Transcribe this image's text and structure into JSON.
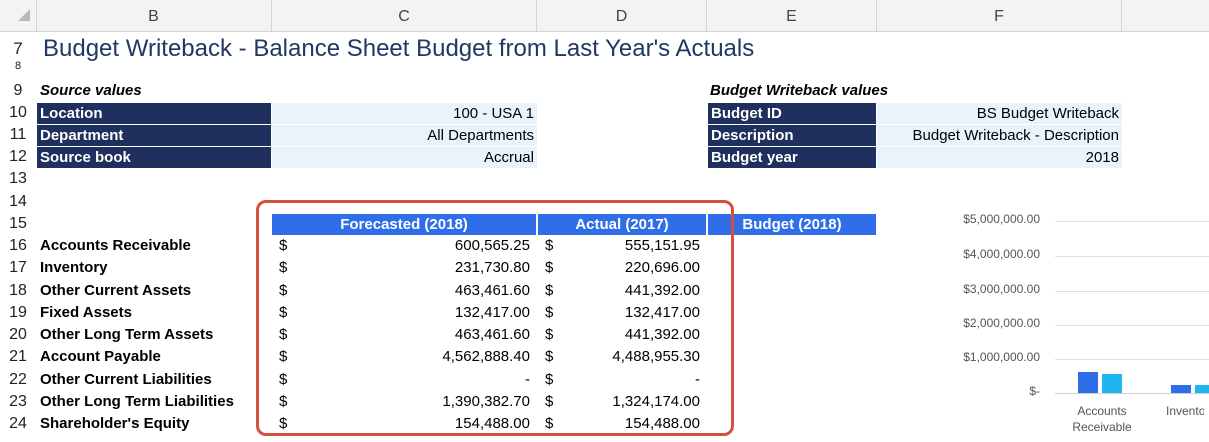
{
  "columns": [
    "B",
    "C",
    "D",
    "E",
    "F"
  ],
  "rows": [
    "7",
    "8",
    "9",
    "10",
    "11",
    "12",
    "13",
    "14",
    "15",
    "16",
    "17",
    "18",
    "19",
    "20",
    "21",
    "22",
    "23",
    "24"
  ],
  "title": "Budget Writeback - Balance Sheet Budget from Last Year's Actuals",
  "source": {
    "heading": "Source values",
    "fields": [
      {
        "label": "Location",
        "value": "100 - USA 1"
      },
      {
        "label": "Department",
        "value": "All Departments"
      },
      {
        "label": "Source book",
        "value": "Accrual"
      }
    ]
  },
  "writeback": {
    "heading": "Budget Writeback values",
    "fields": [
      {
        "label": "Budget ID",
        "value": "BS Budget Writeback"
      },
      {
        "label": "Description",
        "value": "Budget Writeback - Description"
      },
      {
        "label": "Budget year",
        "value": "2018"
      }
    ]
  },
  "table": {
    "headers": [
      "Forecasted (2018)",
      "Actual (2017)",
      "Budget (2018)"
    ],
    "currency": "$",
    "rows": [
      {
        "label": "Accounts Receivable",
        "forecast": "600,565.25",
        "actual": "555,151.95"
      },
      {
        "label": "Inventory",
        "forecast": "231,730.80",
        "actual": "220,696.00"
      },
      {
        "label": "Other Current Assets",
        "forecast": "463,461.60",
        "actual": "441,392.00"
      },
      {
        "label": "Fixed Assets",
        "forecast": "132,417.00",
        "actual": "132,417.00"
      },
      {
        "label": "Other Long Term Assets",
        "forecast": "463,461.60",
        "actual": "441,392.00"
      },
      {
        "label": "Account Payable",
        "forecast": "4,562,888.40",
        "actual": "4,488,955.30"
      },
      {
        "label": "Other Current Liabilities",
        "forecast": "-",
        "actual": "-"
      },
      {
        "label": "Other Long Term Liabilities",
        "forecast": "1,390,382.70",
        "actual": "1,324,174.00"
      },
      {
        "label": "Shareholder's Equity",
        "forecast": "154,488.00",
        "actual": "154,488.00"
      }
    ]
  },
  "chart_data": {
    "type": "bar",
    "categories": [
      "Accounts Receivable",
      "Inventory"
    ],
    "series": [
      {
        "name": "Forecasted (2018)",
        "values": [
          600565.25,
          231730.8
        ],
        "color": "#2f6ee8"
      },
      {
        "name": "Actual (2017)",
        "values": [
          555151.95,
          220696.0
        ],
        "color": "#1fb6f0"
      }
    ],
    "yticks": [
      "$5,000,000.00",
      "$4,000,000.00",
      "$3,000,000.00",
      "$2,000,000.00",
      "$1,000,000.00",
      "$-"
    ],
    "xlabels": [
      "Accounts\nReceivable",
      "Invento"
    ],
    "ylim": [
      0,
      5000000
    ]
  }
}
